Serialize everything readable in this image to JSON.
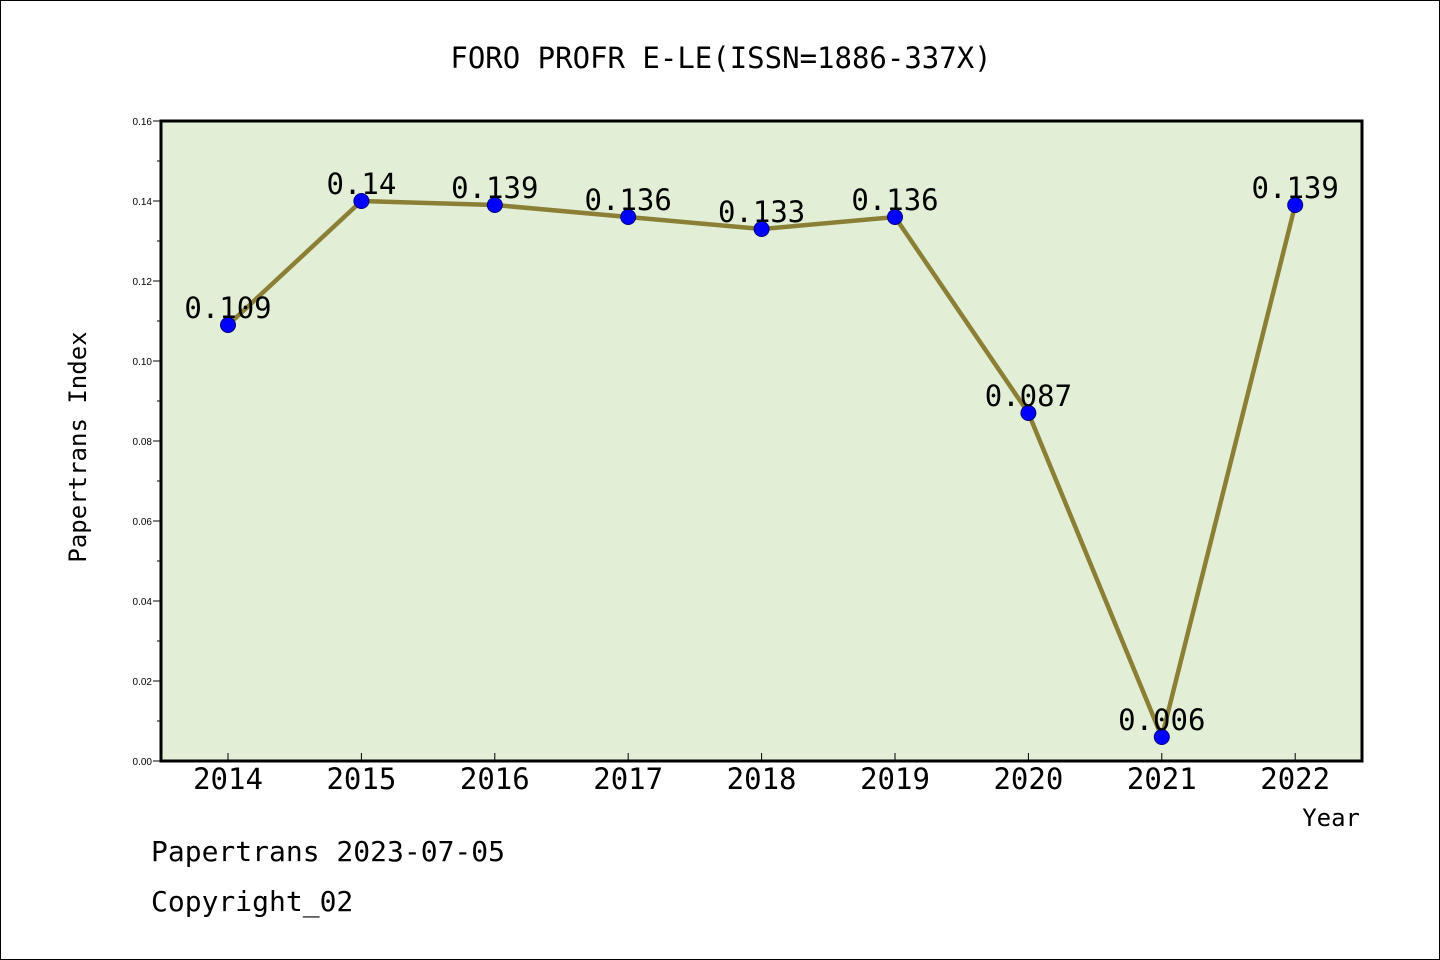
{
  "chart_data": {
    "type": "line",
    "title": "FORO PROFR E-LE(ISSN=1886-337X)",
    "xlabel": "Year",
    "ylabel": "Papertrans Index",
    "categories": [
      "2014",
      "2015",
      "2016",
      "2017",
      "2018",
      "2019",
      "2020",
      "2021",
      "2022"
    ],
    "series": [
      {
        "values": [
          0.109,
          0.14,
          0.139,
          0.136,
          0.133,
          0.136,
          0.087,
          0.006,
          0.139
        ]
      }
    ],
    "data_labels": [
      "0.109",
      "0.14",
      "0.139",
      "0.136",
      "0.133",
      "0.136",
      "0.087",
      "0.006",
      "0.139"
    ],
    "ylim": [
      0,
      0.16
    ],
    "yticks": [
      "0.00",
      "0.02",
      "0.04",
      "0.06",
      "0.08",
      "0.10",
      "0.12",
      "0.14",
      "0.16"
    ],
    "grid": false,
    "legend": "none"
  },
  "colors": {
    "plot_background": "#e2efd6",
    "line": "#8b7f35",
    "marker": "#0000ff",
    "axis": "#000000"
  },
  "footer": {
    "line1": "Papertrans 2023-07-05",
    "line2": "Copyright_02"
  }
}
